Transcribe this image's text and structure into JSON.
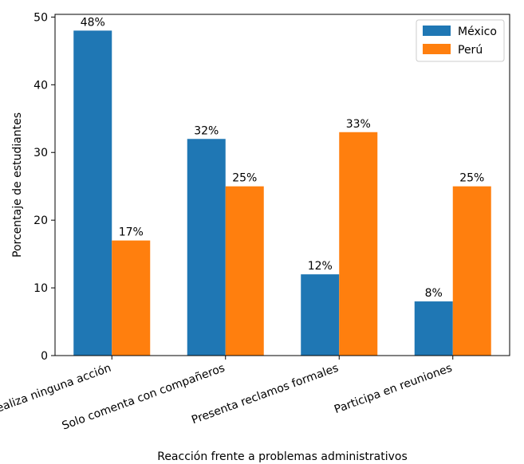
{
  "chart_data": {
    "type": "bar",
    "title": "",
    "xlabel": "Reacción frente a problemas administrativos",
    "ylabel": "Porcentaje de estudiantes",
    "categories": [
      "No realiza ninguna acción",
      "Solo comenta con compañeros",
      "Presenta reclamos formales",
      "Participa en reuniones"
    ],
    "series": [
      {
        "name": "México",
        "values": [
          48,
          32,
          12,
          8
        ],
        "labels": [
          "48%",
          "32%",
          "12%",
          "8%"
        ],
        "color": "#1f77b4"
      },
      {
        "name": "Perú",
        "values": [
          17,
          25,
          33,
          25
        ],
        "labels": [
          "17%",
          "25%",
          "33%",
          "25%"
        ],
        "color": "#ff7f0e"
      }
    ],
    "ylim": [
      0,
      50.4
    ],
    "yticks": [
      0,
      10,
      20,
      30,
      40,
      50
    ],
    "grid": false,
    "legend_position": "top-right"
  }
}
